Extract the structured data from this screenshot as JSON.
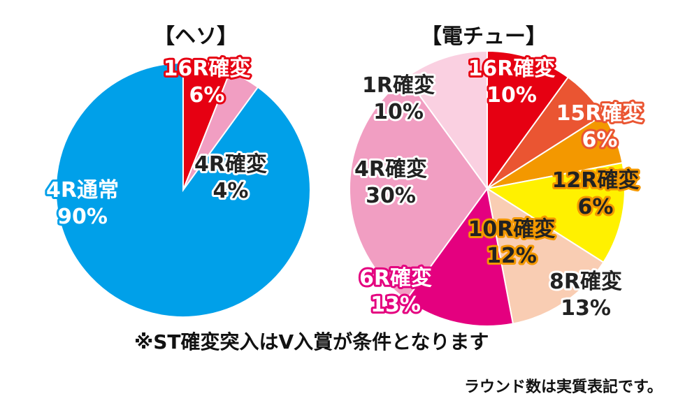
{
  "notes": {
    "st_note": "※ST確変突入はV入賞が条件となります",
    "round_note": "ラウンド数は実質表記です。"
  },
  "chart_data": [
    {
      "type": "pie",
      "title": "【ヘソ】",
      "slices": [
        {
          "label": "16R確変",
          "value": 6,
          "value_label": "6%",
          "color": "#e60012",
          "text_color": "#ffffff",
          "stroke_color": "#e60012"
        },
        {
          "label": "4R確変",
          "value": 4,
          "value_label": "4%",
          "color": "#f19ec2",
          "text_color": "#222222",
          "stroke_color": "#ffffff"
        },
        {
          "label": "4R通常",
          "value": 90,
          "value_label": "90%",
          "color": "#00a0e9",
          "text_color": "#ffffff",
          "stroke_color": "#00a0e9"
        }
      ]
    },
    {
      "type": "pie",
      "title": "【電チュー】",
      "slices": [
        {
          "label": "16R確変",
          "value": 10,
          "value_label": "10%",
          "color": "#e60012",
          "text_color": "#ffffff",
          "stroke_color": "#e60012"
        },
        {
          "label": "15R確変",
          "value": 6,
          "value_label": "6%",
          "color": "#ea5532",
          "text_color": "#ffffff",
          "stroke_color": "#ea5532"
        },
        {
          "label": "12R確変",
          "value": 6,
          "value_label": "6%",
          "color": "#f39800",
          "text_color": "#222222",
          "stroke_color": "#f39800"
        },
        {
          "label": "10R確変",
          "value": 12,
          "value_label": "12%",
          "color": "#fff100",
          "text_color": "#222222",
          "stroke_color": "#f39800"
        },
        {
          "label": "8R確変",
          "value": 13,
          "value_label": "13%",
          "color": "#f9cdb3",
          "text_color": "#222222",
          "stroke_color": "#ffffff"
        },
        {
          "label": "6R確変",
          "value": 13,
          "value_label": "13%",
          "color": "#e4007f",
          "text_color": "#ffffff",
          "stroke_color": "#e4007f"
        },
        {
          "label": "4R確変",
          "value": 30,
          "value_label": "30%",
          "color": "#f19ec2",
          "text_color": "#222222",
          "stroke_color": "#ffffff"
        },
        {
          "label": "1R確変",
          "value": 10,
          "value_label": "10%",
          "color": "#fad0e1",
          "text_color": "#222222",
          "stroke_color": "#ffffff"
        }
      ]
    }
  ]
}
